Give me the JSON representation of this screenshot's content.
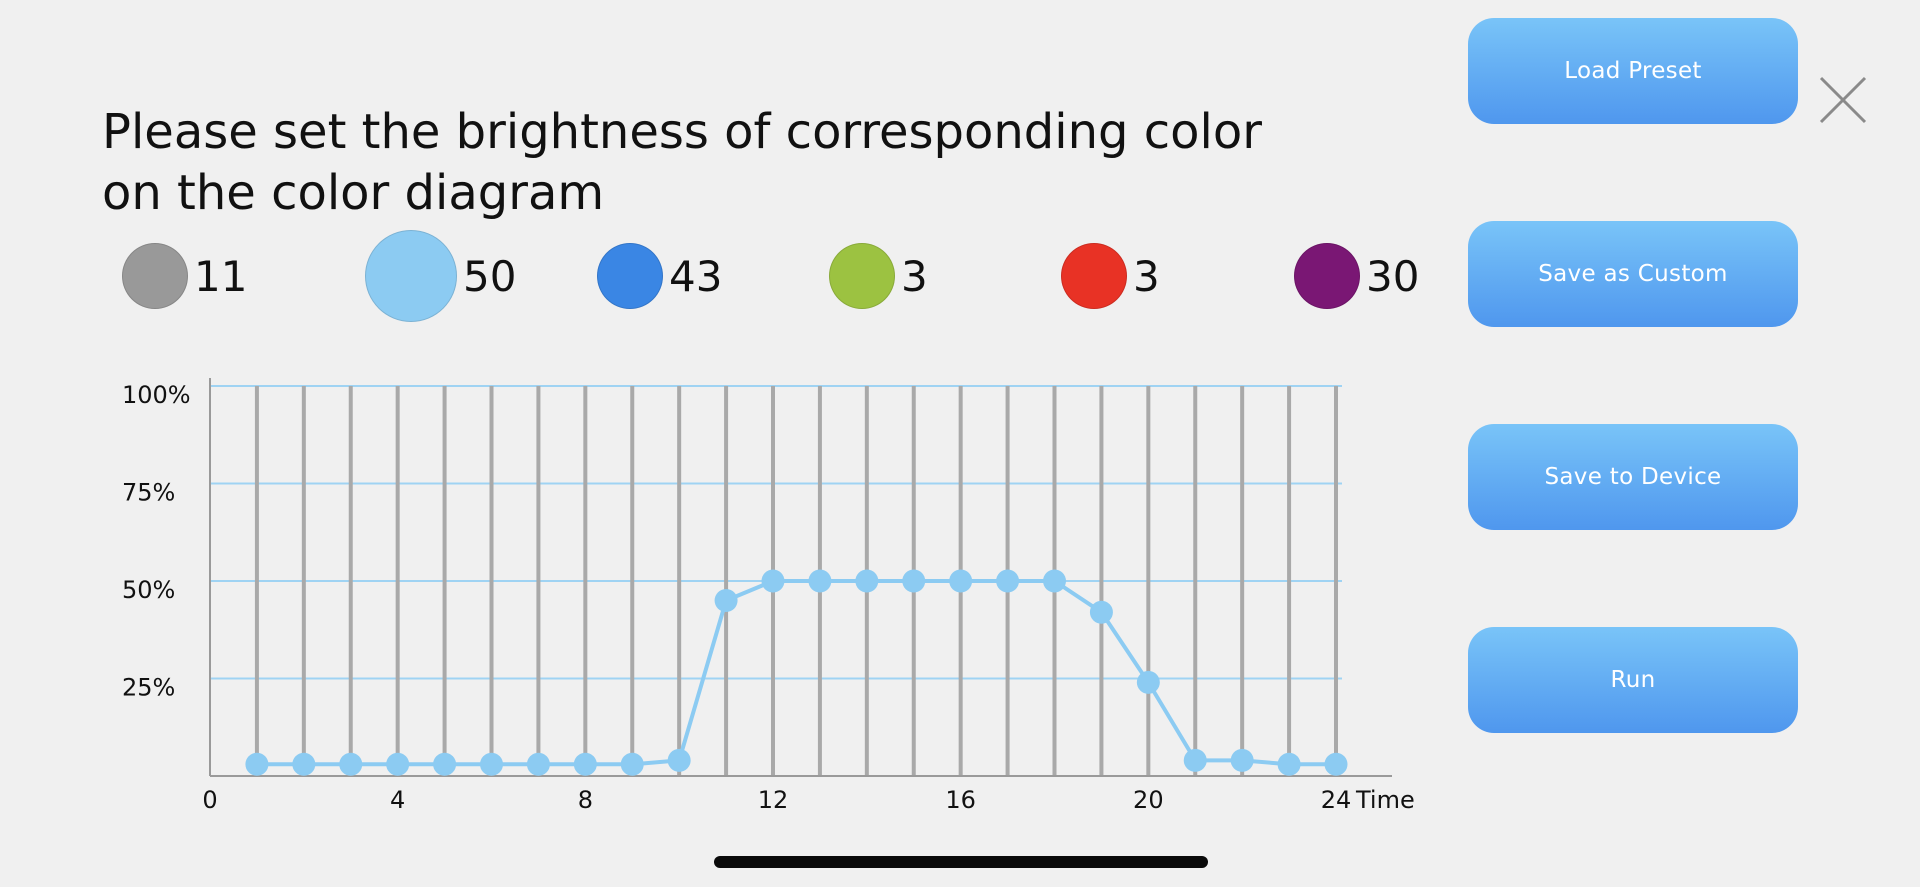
{
  "instruction": "Please set the brightness of corresponding color on the color diagram",
  "channels": [
    {
      "name": "gray-channel",
      "color": "#999999",
      "value": "11"
    },
    {
      "name": "sky-blue-channel",
      "color": "#8ccbf2",
      "value": "50"
    },
    {
      "name": "blue-channel",
      "color": "#3a86e4",
      "value": "43"
    },
    {
      "name": "green-channel",
      "color": "#9cc241",
      "value": "3"
    },
    {
      "name": "red-channel",
      "color": "#e83225",
      "value": "3"
    },
    {
      "name": "purple-channel",
      "color": "#7a1774",
      "value": "30"
    }
  ],
  "buttons": {
    "load_preset": "Load Preset",
    "save_custom": "Save as Custom",
    "save_device": "Save to Device",
    "run": "Run"
  },
  "close_icon": "close-icon",
  "chart_data": {
    "type": "line",
    "series": [
      {
        "color": "#8ccbf2",
        "x": [
          1,
          2,
          3,
          4,
          5,
          6,
          7,
          8,
          9,
          10,
          11,
          12,
          13,
          14,
          15,
          16,
          17,
          18,
          19,
          20,
          21,
          22,
          23,
          24
        ],
        "values": [
          3,
          3,
          3,
          3,
          3,
          3,
          3,
          3,
          3,
          4,
          45,
          50,
          50,
          50,
          50,
          50,
          50,
          50,
          42,
          24,
          4,
          4,
          3,
          3
        ]
      }
    ],
    "y_ticks": [
      {
        "value": 100,
        "label": "100%"
      },
      {
        "value": 75,
        "label": "75%"
      },
      {
        "value": 50,
        "label": "50%"
      },
      {
        "value": 25,
        "label": "25%"
      }
    ],
    "x_ticks": [
      {
        "value": 0,
        "label": "0"
      },
      {
        "value": 4,
        "label": "4"
      },
      {
        "value": 8,
        "label": "8"
      },
      {
        "value": 12,
        "label": "12"
      },
      {
        "value": 16,
        "label": "16"
      },
      {
        "value": 20,
        "label": "20"
      },
      {
        "value": 24,
        "label": "24"
      }
    ],
    "xlabel": "Time",
    "ylabel": "",
    "xlim": [
      0,
      24
    ],
    "ylim": [
      0,
      100
    ],
    "grid": true
  }
}
